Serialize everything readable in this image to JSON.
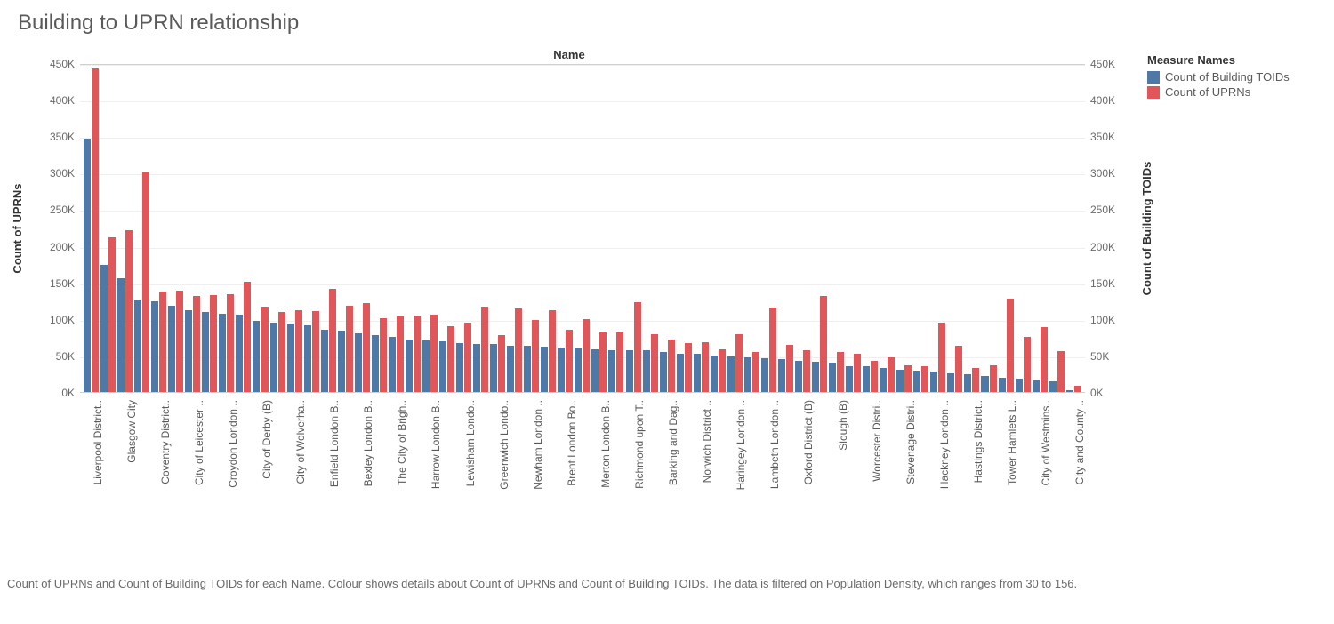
{
  "title": "Building to UPRN relationship",
  "axis_top_label": "Name",
  "y_left_label": "Count of UPRNs",
  "y_right_label": "Count of Building TOIDs",
  "legend_title": "Measure Names",
  "legend_items": [
    {
      "label": "Count of Building TOIDs",
      "color": "#4e79a7"
    },
    {
      "label": "Count of UPRNs",
      "color": "#e15759"
    }
  ],
  "colors": {
    "toids": "#4e79a7",
    "uprns": "#e15759",
    "grid": "#efefef",
    "border": "#d0d0d0",
    "text": "#5a5a5a",
    "background": "#ffffff"
  },
  "y_ticks": [
    "0K",
    "50K",
    "100K",
    "150K",
    "200K",
    "250K",
    "300K",
    "350K",
    "400K",
    "450K"
  ],
  "y_max": 450,
  "categories": [
    {
      "label": "Liverpool District..",
      "toids": 348,
      "uprns": 445
    },
    {
      "label": "",
      "toids": 175,
      "uprns": 213
    },
    {
      "label": "Glasgow City",
      "toids": 157,
      "uprns": 223
    },
    {
      "label": "",
      "toids": 126,
      "uprns": 303
    },
    {
      "label": "Coventry District..",
      "toids": 125,
      "uprns": 138
    },
    {
      "label": "",
      "toids": 119,
      "uprns": 140
    },
    {
      "label": "City of Leicester ..",
      "toids": 113,
      "uprns": 132
    },
    {
      "label": "",
      "toids": 110,
      "uprns": 133
    },
    {
      "label": "Croydon London ..",
      "toids": 108,
      "uprns": 134
    },
    {
      "label": "",
      "toids": 107,
      "uprns": 152
    },
    {
      "label": "City of Derby (B)",
      "toids": 98,
      "uprns": 117
    },
    {
      "label": "",
      "toids": 96,
      "uprns": 110
    },
    {
      "label": "City of Wolverha..",
      "toids": 94,
      "uprns": 113
    },
    {
      "label": "",
      "toids": 92,
      "uprns": 111
    },
    {
      "label": "Enfield London B..",
      "toids": 86,
      "uprns": 142
    },
    {
      "label": "",
      "toids": 84,
      "uprns": 119
    },
    {
      "label": "Bexley London B..",
      "toids": 81,
      "uprns": 122
    },
    {
      "label": "",
      "toids": 78,
      "uprns": 102
    },
    {
      "label": "The City of Brigh..",
      "toids": 76,
      "uprns": 104
    },
    {
      "label": "",
      "toids": 72,
      "uprns": 104
    },
    {
      "label": "Harrow London B..",
      "toids": 71,
      "uprns": 106
    },
    {
      "label": "",
      "toids": 70,
      "uprns": 90
    },
    {
      "label": "Lewisham Londo..",
      "toids": 67,
      "uprns": 96
    },
    {
      "label": "",
      "toids": 66,
      "uprns": 118
    },
    {
      "label": "Greenwich Londo..",
      "toids": 66,
      "uprns": 78
    },
    {
      "label": "",
      "toids": 64,
      "uprns": 115
    },
    {
      "label": "Newham London ..",
      "toids": 63,
      "uprns": 99
    },
    {
      "label": "",
      "toids": 62,
      "uprns": 113
    },
    {
      "label": "Brent London Bo..",
      "toids": 61,
      "uprns": 86
    },
    {
      "label": "",
      "toids": 60,
      "uprns": 100
    },
    {
      "label": "Merton London B..",
      "toids": 59,
      "uprns": 82
    },
    {
      "label": "",
      "toids": 58,
      "uprns": 82
    },
    {
      "label": "Richmond upon T..",
      "toids": 57,
      "uprns": 124
    },
    {
      "label": "",
      "toids": 57,
      "uprns": 79
    },
    {
      "label": "Barking and Dag..",
      "toids": 55,
      "uprns": 72
    },
    {
      "label": "",
      "toids": 53,
      "uprns": 67
    },
    {
      "label": "Norwich District ..",
      "toids": 52,
      "uprns": 69
    },
    {
      "label": "",
      "toids": 50,
      "uprns": 59
    },
    {
      "label": "Haringey London ..",
      "toids": 49,
      "uprns": 80
    },
    {
      "label": "",
      "toids": 48,
      "uprns": 55
    },
    {
      "label": "Lambeth London ..",
      "toids": 46,
      "uprns": 116
    },
    {
      "label": "",
      "toids": 45,
      "uprns": 65
    },
    {
      "label": "Oxford District (B)",
      "toids": 43,
      "uprns": 58
    },
    {
      "label": "",
      "toids": 42,
      "uprns": 132
    },
    {
      "label": "Slough (B)",
      "toids": 40,
      "uprns": 55
    },
    {
      "label": "",
      "toids": 36,
      "uprns": 53
    },
    {
      "label": "Worcester Distri..",
      "toids": 35,
      "uprns": 43
    },
    {
      "label": "",
      "toids": 33,
      "uprns": 48
    },
    {
      "label": "Stevenage Distri..",
      "toids": 30,
      "uprns": 37
    },
    {
      "label": "",
      "toids": 29,
      "uprns": 35
    },
    {
      "label": "Hackney London ..",
      "toids": 28,
      "uprns": 95
    },
    {
      "label": "",
      "toids": 26,
      "uprns": 64
    },
    {
      "label": "Hastings District..",
      "toids": 25,
      "uprns": 33
    },
    {
      "label": "",
      "toids": 22,
      "uprns": 37
    },
    {
      "label": "Tower Hamlets L..",
      "toids": 20,
      "uprns": 128
    },
    {
      "label": "",
      "toids": 18,
      "uprns": 76
    },
    {
      "label": "City of Westmins..",
      "toids": 17,
      "uprns": 89
    },
    {
      "label": "",
      "toids": 15,
      "uprns": 56
    },
    {
      "label": "City and County ..",
      "toids": 2,
      "uprns": 9
    }
  ],
  "caption": "Count of UPRNs and Count of Building TOIDs for each Name.  Colour shows details about Count of UPRNs and Count of Building TOIDs. The data is filtered on Population Density, which ranges from 30 to 156."
}
